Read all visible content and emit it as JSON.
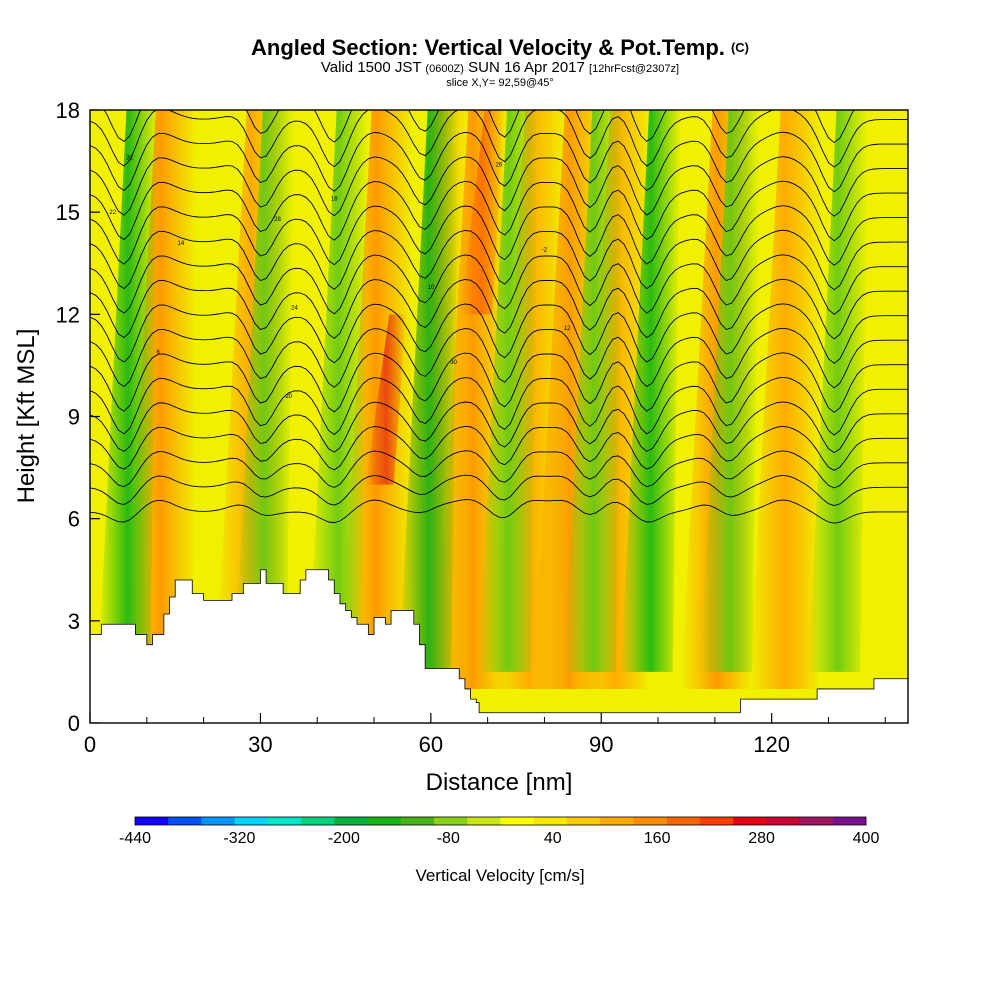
{
  "chart_data": {
    "type": "heatmap",
    "title": "Angled Section: Vertical Velocity & Pot.Temp.",
    "title_unit": "(C)",
    "subtitle_valid": "Valid 1500 JST",
    "subtitle_utc": "(0600Z)",
    "subtitle_date": "SUN 16 Apr 2017",
    "subtitle_fcst": "[12hrFcst@2307z]",
    "slice": "slice X,Y= 92,59@45°",
    "xlabel": "Distance [nm]",
    "ylabel": "Height [Kft MSL]",
    "xlim": [
      0,
      144
    ],
    "ylim": [
      0,
      18
    ],
    "x_ticks": [
      "0",
      "30",
      "60",
      "90",
      "120"
    ],
    "y_ticks": [
      "0",
      "3",
      "6",
      "9",
      "12",
      "15",
      "18"
    ],
    "colorbar": {
      "label": "Vertical Velocity [cm/s]",
      "range": [
        -440,
        400
      ],
      "step": 40,
      "tick_labels": [
        "-440",
        "-320",
        "-200",
        "-80",
        "40",
        "160",
        "280",
        "400"
      ],
      "colors": [
        "#1400ff",
        "#0050ff",
        "#0096ff",
        "#00d2ff",
        "#00e6c8",
        "#00d27a",
        "#00b43c",
        "#14b414",
        "#46b414",
        "#8cd214",
        "#c8e614",
        "#ffff00",
        "#ffe600",
        "#ffc800",
        "#ffaa00",
        "#ff8c00",
        "#ff6400",
        "#ff3c00",
        "#e60014",
        "#c80032",
        "#a01460",
        "#7a1090"
      ]
    },
    "updraft_bands_nm": [
      12,
      28,
      50,
      60,
      67,
      77,
      84,
      92,
      110,
      122
    ],
    "downdraft_bands_nm": [
      6,
      30,
      43,
      59,
      73,
      88,
      98,
      112,
      131
    ],
    "theta_contour_labels": [
      "32",
      "22",
      "14",
      "6",
      "28",
      "24",
      "20",
      "16",
      "10",
      "30",
      "26",
      "-2",
      "12"
    ],
    "terrain_kft": [
      [
        0,
        2.6
      ],
      [
        1,
        2.6
      ],
      [
        2,
        2.9
      ],
      [
        7,
        2.9
      ],
      [
        8,
        2.6
      ],
      [
        9,
        2.6
      ],
      [
        10,
        2.3
      ],
      [
        11,
        2.6
      ],
      [
        12,
        2.6
      ],
      [
        13,
        3.2
      ],
      [
        14,
        3.7
      ],
      [
        15,
        4.2
      ],
      [
        17,
        4.2
      ],
      [
        18,
        3.8
      ],
      [
        19,
        3.8
      ],
      [
        20,
        3.6
      ],
      [
        24,
        3.6
      ],
      [
        25,
        3.8
      ],
      [
        26,
        3.8
      ],
      [
        27,
        4.1
      ],
      [
        29,
        4.1
      ],
      [
        30,
        4.5
      ],
      [
        31,
        4.1
      ],
      [
        33,
        4.1
      ],
      [
        34,
        3.8
      ],
      [
        36,
        3.8
      ],
      [
        37,
        4.2
      ],
      [
        38,
        4.5
      ],
      [
        41,
        4.5
      ],
      [
        42,
        4.2
      ],
      [
        43,
        3.8
      ],
      [
        44,
        3.5
      ],
      [
        45,
        3.3
      ],
      [
        46,
        3.1
      ],
      [
        47,
        2.9
      ],
      [
        48,
        2.9
      ],
      [
        49,
        2.6
      ],
      [
        50,
        3.1
      ],
      [
        51,
        3.1
      ],
      [
        52,
        2.9
      ],
      [
        53,
        3.3
      ],
      [
        56,
        3.3
      ],
      [
        57,
        2.9
      ],
      [
        58,
        2.3
      ],
      [
        59,
        1.6
      ],
      [
        64,
        1.6
      ],
      [
        65,
        1.3
      ],
      [
        66,
        1.0
      ],
      [
        67,
        0.7
      ],
      [
        68,
        0.6
      ],
      [
        68.5,
        0.3
      ],
      [
        114,
        0.3
      ],
      [
        114.5,
        0.7
      ],
      [
        127,
        0.7
      ],
      [
        128,
        1.0
      ],
      [
        137,
        1.0
      ],
      [
        138,
        1.3
      ],
      [
        144,
        1.3
      ]
    ]
  }
}
